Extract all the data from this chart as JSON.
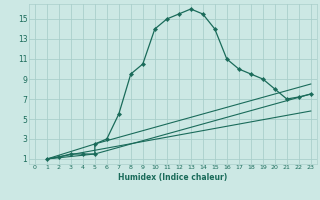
{
  "xlabel": "Humidex (Indice chaleur)",
  "bg_color": "#cce8e4",
  "grid_color": "#aacfcb",
  "line_color": "#1a6b5a",
  "xlim": [
    -0.5,
    23.5
  ],
  "ylim": [
    0.5,
    16.5
  ],
  "xticks": [
    0,
    1,
    2,
    3,
    4,
    5,
    6,
    7,
    8,
    9,
    10,
    11,
    12,
    13,
    14,
    15,
    16,
    17,
    18,
    19,
    20,
    21,
    22,
    23
  ],
  "yticks": [
    1,
    3,
    5,
    7,
    9,
    11,
    13,
    15
  ],
  "main_series": {
    "x": [
      1,
      2,
      3,
      4,
      5,
      5,
      6,
      7,
      8,
      9,
      10,
      11,
      12,
      13,
      14,
      15,
      16,
      17,
      18,
      19,
      20,
      21,
      22,
      23
    ],
    "y": [
      1,
      1.2,
      1.5,
      1.5,
      1.5,
      2.5,
      3.0,
      5.5,
      9.5,
      10.5,
      14.0,
      15.0,
      15.5,
      16.0,
      15.5,
      14.0,
      11.0,
      10.0,
      9.5,
      9.0,
      8.0,
      7.0,
      7.2,
      7.5
    ]
  },
  "straight_lines": [
    {
      "x": [
        1,
        5,
        23
      ],
      "y": [
        1,
        1.5,
        7.5
      ]
    },
    {
      "x": [
        1,
        5,
        23
      ],
      "y": [
        1,
        2.5,
        8.5
      ]
    },
    {
      "x": [
        1,
        23
      ],
      "y": [
        1,
        5.8
      ]
    }
  ]
}
